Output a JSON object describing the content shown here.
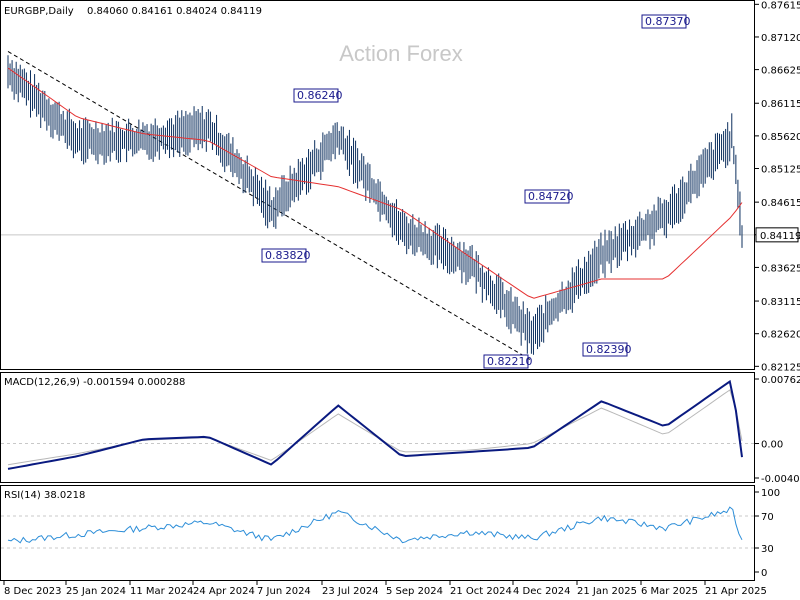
{
  "header": {
    "symbol": "EURGBP,Daily",
    "ohlc": "0.84060 0.84161 0.84024 0.84119"
  },
  "watermark": "Action Forex",
  "colors": {
    "price_bar": "#0c2f5e",
    "ma": "#e53030",
    "trendline": "#000000",
    "macd": "#0a1a80",
    "signal": "#b8b8b8",
    "rsi": "#2d8ed8",
    "grid": "#c8c8c8",
    "label_border": "#1a1a8c"
  },
  "chart_data": [
    {
      "type": "line",
      "name": "EURGBP Daily price (OHLC bars)",
      "title": "EURGBP,Daily",
      "x_ticks": [
        "8 Dec 2023",
        "25 Jan 2024",
        "11 Mar 2024",
        "24 Apr 2024",
        "7 Jun 2024",
        "23 Jul 2024",
        "5 Sep 2024",
        "21 Oct 2024",
        "4 Dec 2024",
        "21 Jan 2025",
        "6 Mar 2025",
        "21 Apr 2025"
      ],
      "y_ticks": [
        "0.87615",
        "0.87120",
        "0.86625",
        "0.86115",
        "0.85620",
        "0.85125",
        "0.84615",
        "0.84120",
        "0.83625",
        "0.83115",
        "0.82620",
        "0.82125"
      ],
      "ylim": [
        0.8213,
        0.8762
      ],
      "x": [
        "2023-12-08",
        "2024-01-25",
        "2024-03-11",
        "2024-04-24",
        "2024-06-07",
        "2024-07-23",
        "2024-09-05",
        "2024-10-21",
        "2024-12-04",
        "2025-01-21",
        "2025-03-06",
        "2025-04-21",
        "2025-04-28"
      ],
      "close": [
        0.866,
        0.8555,
        0.8555,
        0.8575,
        0.845,
        0.856,
        0.842,
        0.837,
        0.826,
        0.838,
        0.844,
        0.856,
        0.8412
      ],
      "ma": [
        0.8665,
        0.859,
        0.8565,
        0.8555,
        0.85,
        0.8485,
        0.845,
        0.838,
        0.8315,
        0.8345,
        0.8345,
        0.844,
        0.8461
      ],
      "trendline": [
        [
          0.869,
          "2023-12-08"
        ],
        [
          0.8221,
          "2024-12-04"
        ]
      ],
      "annotations": [
        {
          "label": "0.87370",
          "value": 0.8737
        },
        {
          "label": "0.86240",
          "value": 0.8624
        },
        {
          "label": "0.84720",
          "value": 0.8472
        },
        {
          "label": "0.83820",
          "value": 0.8382
        },
        {
          "label": "0.82390",
          "value": 0.8239
        },
        {
          "label": "0.82210",
          "value": 0.8221
        }
      ],
      "current_price_label": "0.84119",
      "current_price": 0.84119
    },
    {
      "type": "line",
      "name": "MACD(12,26,9)",
      "title": "MACD(12,26,9) -0.001594 0.000288",
      "y_ticks": [
        "0.007623",
        "0.00",
        "-0.004073"
      ],
      "ylim": [
        -0.004073,
        0.007623
      ],
      "x": [
        "2023-12-08",
        "2024-01-25",
        "2024-03-11",
        "2024-04-24",
        "2024-06-07",
        "2024-07-23",
        "2024-09-05",
        "2024-10-21",
        "2024-12-04",
        "2025-01-21",
        "2025-03-06",
        "2025-04-21",
        "2025-04-28"
      ],
      "series": [
        {
          "name": "MACD",
          "values": [
            -0.003,
            -0.0015,
            0.0005,
            0.0008,
            -0.0025,
            0.0045,
            -0.0015,
            -0.001,
            -0.0005,
            0.005,
            0.002,
            0.0075,
            -0.0016
          ]
        },
        {
          "name": "Signal",
          "values": [
            -0.0025,
            -0.0012,
            0.0004,
            0.0007,
            -0.002,
            0.0035,
            -0.001,
            -0.0008,
            0.0,
            0.0042,
            0.001,
            0.0065,
            0.0003
          ]
        }
      ]
    },
    {
      "type": "line",
      "name": "RSI(14)",
      "title": "RSI(14) 38.0218",
      "y_ticks": [
        "100",
        "70",
        "30",
        "0"
      ],
      "ylim": [
        0,
        100
      ],
      "x": [
        "2023-12-08",
        "2024-01-25",
        "2024-03-11",
        "2024-04-24",
        "2024-06-07",
        "2024-07-23",
        "2024-09-05",
        "2024-10-21",
        "2024-12-04",
        "2025-01-21",
        "2025-03-06",
        "2025-04-21",
        "2025-04-28"
      ],
      "series": [
        {
          "name": "RSI",
          "values": [
            38,
            47,
            55,
            62,
            40,
            75,
            40,
            50,
            42,
            68,
            55,
            78,
            38
          ]
        }
      ]
    }
  ]
}
